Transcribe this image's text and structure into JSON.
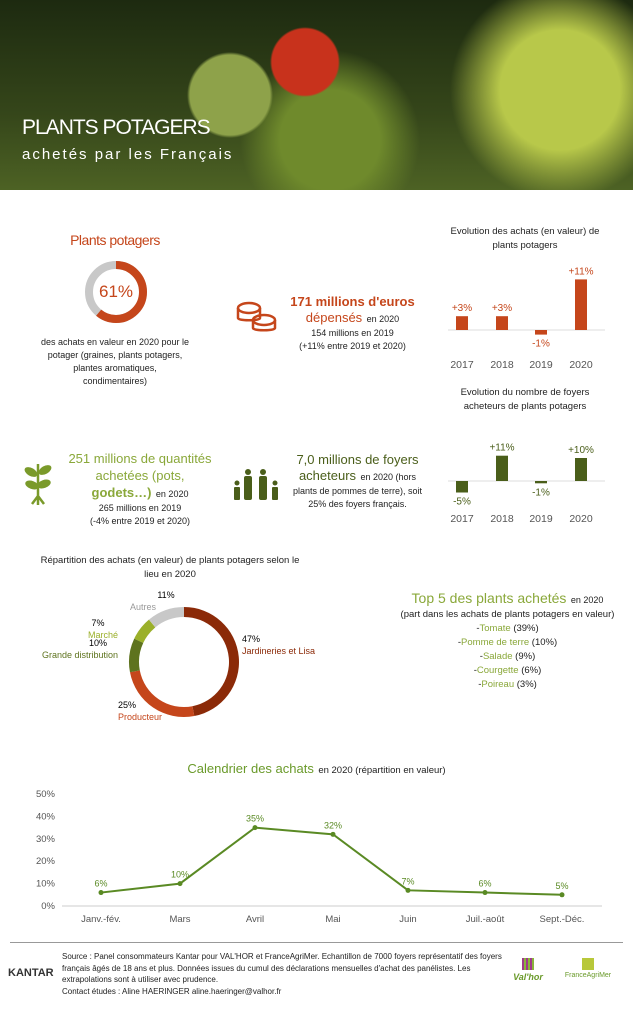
{
  "header": {
    "title": "PLANTS POTAGERS",
    "subtitle": "achetés par les Français"
  },
  "colors": {
    "orange": "#c5461b",
    "dark_red": "#8b2a08",
    "olive": "#4a5e1a",
    "green": "#8aa83a",
    "grey": "#c8c8c8",
    "line": "#5a8a24"
  },
  "share": {
    "title": "Plants potagers",
    "value": "61%",
    "percent": 61,
    "caption": "des achats en valeur en 2020 pour le potager (graines, plants potagers, plantes aromatiques, condimentaires)"
  },
  "spend": {
    "icon": "coins-icon",
    "headline": "171 millions d'euros",
    "headline2": "dépensés",
    "suffix": "en 2020",
    "line1": "154 millions en 2019",
    "line2": "(+11% entre 2019 et 2020)"
  },
  "quantity": {
    "icon": "plant-icon",
    "headline": "251 millions de quantités achetées (pots,",
    "headline2": "godets…)",
    "suffix": "en 2020",
    "line1": "265 millions en 2019",
    "line2": "(-4% entre 2019 et 2020)"
  },
  "households": {
    "icon": "family-icon",
    "headline": "7,0 millions de foyers",
    "headline2": "acheteurs",
    "suffix": "en 2020 (hors",
    "line1": "plants de pommes de terre), soit",
    "line2": "25% des foyers français."
  },
  "top5": {
    "title": "Top 5 des plants achetés",
    "suffix": "en 2020",
    "subtitle": "(part dans les achats de plants potagers en valeur)",
    "items": [
      {
        "name": "Tomate",
        "value": "(39%)"
      },
      {
        "name": "Pomme de terre",
        "value": "(10%)"
      },
      {
        "name": "Salade",
        "value": "(9%)"
      },
      {
        "name": "Courgette",
        "value": "(6%)"
      },
      {
        "name": "Poireau",
        "value": "(3%)"
      }
    ]
  },
  "footer": {
    "brand": "KANTAR",
    "source": "Source : Panel consommateurs Kantar pour VAL'HOR et FranceAgriMer. Echantillon de 7000 foyers représentatif des foyers français âgés de 18 ans et plus. Données issues du cumul des déclarations mensuelles d'achat des panélistes. Les extrapolations sont à utiliser avec prudence.",
    "contact": "Contact études : Aline HAERINGER aline.haeringer@valhor.fr",
    "logo1": "Val'hor",
    "logo2": "FranceAgriMer"
  },
  "chart_data": [
    {
      "type": "bar",
      "title": "Evolution des achats (en valeur) de plants potagers",
      "categories": [
        "2017",
        "2018",
        "2019",
        "2020"
      ],
      "values": [
        3,
        3,
        -1,
        11
      ],
      "labels": [
        "+3%",
        "+3%",
        "-1%",
        "+11%"
      ],
      "color": "#c5461b"
    },
    {
      "type": "bar",
      "title": "Evolution du nombre de foyers acheteurs de plants potagers",
      "categories": [
        "2017",
        "2018",
        "2019",
        "2020"
      ],
      "values": [
        -5,
        11,
        -1,
        10
      ],
      "labels": [
        "-5%",
        "+11%",
        "-1%",
        "+10%"
      ],
      "color": "#4a5e1a"
    },
    {
      "type": "pie",
      "title": "Répartition des achats (en valeur) de plants potagers selon le lieu en 2020",
      "slices": [
        {
          "name": "Jardineries et Lisa",
          "value": 47,
          "label": "47%",
          "color": "#8b2a08"
        },
        {
          "name": "Producteur",
          "value": 25,
          "label": "25%",
          "color": "#c5461b"
        },
        {
          "name": "Grande distribution",
          "value": 10,
          "label": "10%",
          "color": "#5e731e"
        },
        {
          "name": "Marché",
          "value": 7,
          "label": "7%",
          "color": "#9bb02a"
        },
        {
          "name": "Autres",
          "value": 11,
          "label": "11%",
          "color": "#c8c8c8"
        }
      ]
    },
    {
      "type": "line",
      "title": "Calendrier des achats",
      "title_suffix": "en 2020 (répartition en valeur)",
      "categories": [
        "Janv.-fév.",
        "Mars",
        "Avril",
        "Mai",
        "Juin",
        "Juil.-août",
        "Sept.-Déc."
      ],
      "values": [
        6,
        10,
        35,
        32,
        7,
        6,
        5
      ],
      "labels": [
        "6%",
        "10%",
        "35%",
        "32%",
        "7%",
        "6%",
        "5%"
      ],
      "ylim": [
        0,
        50
      ],
      "yticks": [
        "0%",
        "10%",
        "20%",
        "30%",
        "40%",
        "50%"
      ],
      "color": "#5a8a24"
    }
  ]
}
